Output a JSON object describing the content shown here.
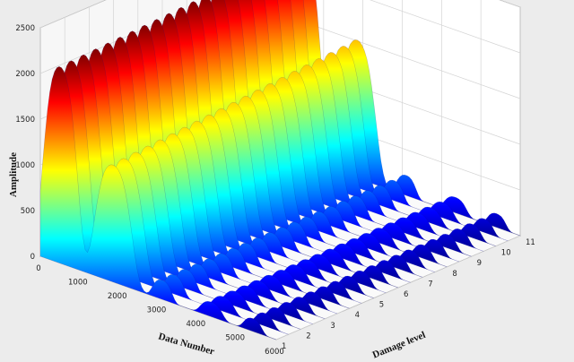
{
  "chart_data": {
    "type": "surface",
    "xlabel": "Data Number",
    "ylabel": "Damage level",
    "zlabel": "Amplitude",
    "xlim": [
      0,
      6000
    ],
    "ylim": [
      1,
      11
    ],
    "zlim": [
      0,
      2500
    ],
    "x_ticks": [
      0,
      1000,
      2000,
      3000,
      4000,
      5000,
      6000
    ],
    "y_ticks": [
      1,
      2,
      3,
      4,
      5,
      6,
      7,
      8,
      9,
      10,
      11
    ],
    "z_ticks": [
      0,
      500,
      1000,
      1500,
      2000,
      2500
    ],
    "grid": true,
    "colormap": "jet",
    "peaks": [
      {
        "center": 500,
        "width": 560,
        "height": 2150,
        "slope_along_damage": 160
      },
      {
        "center": 1850,
        "width": 600,
        "height": 1280,
        "slope_along_damage": 230
      },
      {
        "center": 3100,
        "width": 320,
        "height": 210,
        "slope_along_damage": 10
      },
      {
        "center": 4350,
        "width": 360,
        "height": 160,
        "slope_along_damage": 10
      },
      {
        "center": 5400,
        "width": 300,
        "height": 140,
        "slope_along_damage": 10
      }
    ],
    "colors": {
      "background": "#ececec",
      "pane": "#ffffff",
      "grid": "#d4d4d4",
      "axis": "#555555"
    }
  }
}
